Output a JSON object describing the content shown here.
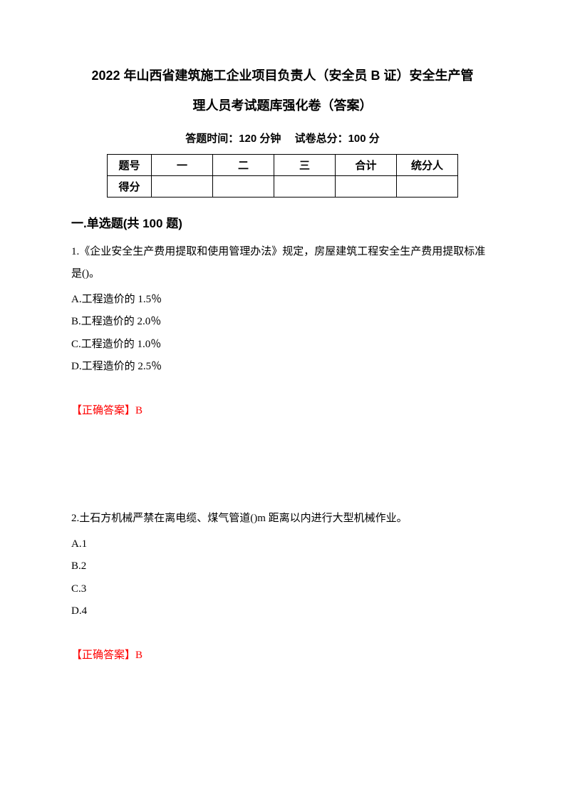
{
  "title_line1": "2022 年山西省建筑施工企业项目负责人（安全员 B 证）安全生产管",
  "title_line2": "理人员考试题库强化卷（答案）",
  "subtitle": "答题时间：120 分钟　 试卷总分：100 分",
  "score_table": {
    "header": {
      "label": "题号",
      "col1": "一",
      "col2": "二",
      "col3": "三",
      "total": "合计",
      "person": "统分人"
    },
    "row": {
      "label": "得分",
      "col1": "",
      "col2": "",
      "col3": "",
      "total": "",
      "person": ""
    }
  },
  "section_heading": "一.单选题(共 100 题)",
  "q1": {
    "text": "1.《企业安全生产费用提取和使用管理办法》规定，房屋建筑工程安全生产费用提取标准是()。",
    "a": "A.工程造价的 1.5％",
    "b": "B.工程造价的 2.0％",
    "c": "C.工程造价的 1.0％",
    "d": "D.工程造价的 2.5％",
    "answer": "【正确答案】B"
  },
  "q2": {
    "text": "2.土石方机械严禁在离电缆、煤气管道()m 距离以内进行大型机械作业。",
    "a": "A.1",
    "b": "B.2",
    "c": "C.3",
    "d": "D.4",
    "answer": "【正确答案】B"
  }
}
